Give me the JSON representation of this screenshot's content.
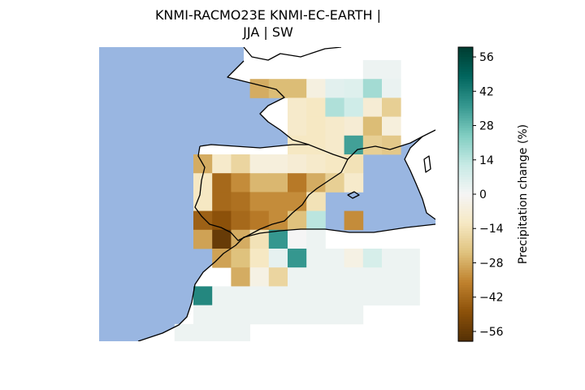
{
  "chart_data": {
    "type": "heatmap",
    "title_lines": [
      "KNMI-RACMO23E KNMI-EC-EARTH |",
      "JJA | SW"
    ],
    "colorbar": {
      "label": "Precipitation change (%)",
      "range": [
        -60,
        60
      ],
      "ticks": [
        -56,
        -42,
        -28,
        -14,
        0,
        14,
        28,
        42,
        56
      ],
      "tick_labels": [
        "−56",
        "−42",
        "−28",
        "−14",
        "0",
        "14",
        "28",
        "42",
        "56"
      ],
      "colormap": "BrBG"
    },
    "map_region": "Southwestern Europe / Iberian Peninsula / Western Mediterranean",
    "grid_columns": 17,
    "grid_rows": 15,
    "colors": {
      "ocean": "#99b6e1",
      "land_background": "#ffffff",
      "coastline": "#000000"
    },
    "cells": [
      {
        "row": 0,
        "col": 14,
        "value": 2
      },
      {
        "row": 0,
        "col": 15,
        "value": 2
      },
      {
        "row": 1,
        "col": 8,
        "value": -28
      },
      {
        "row": 1,
        "col": 9,
        "value": -25
      },
      {
        "row": 1,
        "col": 10,
        "value": -25
      },
      {
        "row": 1,
        "col": 11,
        "value": -5
      },
      {
        "row": 1,
        "col": 12,
        "value": 5
      },
      {
        "row": 1,
        "col": 13,
        "value": 6
      },
      {
        "row": 1,
        "col": 14,
        "value": 18
      },
      {
        "row": 1,
        "col": 15,
        "value": 3
      },
      {
        "row": 2,
        "col": 10,
        "value": -10
      },
      {
        "row": 2,
        "col": 11,
        "value": -12
      },
      {
        "row": 2,
        "col": 12,
        "value": 16
      },
      {
        "row": 2,
        "col": 13,
        "value": 10
      },
      {
        "row": 2,
        "col": 14,
        "value": -8
      },
      {
        "row": 2,
        "col": 15,
        "value": -20
      },
      {
        "row": 3,
        "col": 10,
        "value": -10
      },
      {
        "row": 3,
        "col": 11,
        "value": -12
      },
      {
        "row": 3,
        "col": 12,
        "value": -10
      },
      {
        "row": 3,
        "col": 13,
        "value": -8
      },
      {
        "row": 3,
        "col": 14,
        "value": -25
      },
      {
        "row": 3,
        "col": 15,
        "value": -6
      },
      {
        "row": 4,
        "col": 10,
        "value": -12
      },
      {
        "row": 4,
        "col": 11,
        "value": -12
      },
      {
        "row": 4,
        "col": 12,
        "value": -10
      },
      {
        "row": 4,
        "col": 13,
        "value": 34
      },
      {
        "row": 4,
        "col": 14,
        "value": -20
      },
      {
        "row": 4,
        "col": 15,
        "value": -22
      },
      {
        "row": 5,
        "col": 5,
        "value": -28
      },
      {
        "row": 5,
        "col": 6,
        "value": -10
      },
      {
        "row": 5,
        "col": 7,
        "value": -18
      },
      {
        "row": 5,
        "col": 8,
        "value": -6
      },
      {
        "row": 5,
        "col": 9,
        "value": -6
      },
      {
        "row": 5,
        "col": 10,
        "value": -8
      },
      {
        "row": 5,
        "col": 11,
        "value": -10
      },
      {
        "row": 5,
        "col": 12,
        "value": -12
      },
      {
        "row": 5,
        "col": 13,
        "value": -14
      },
      {
        "row": 6,
        "col": 5,
        "value": -12
      },
      {
        "row": 6,
        "col": 6,
        "value": -42
      },
      {
        "row": 6,
        "col": 7,
        "value": -34
      },
      {
        "row": 6,
        "col": 8,
        "value": -26
      },
      {
        "row": 6,
        "col": 9,
        "value": -26
      },
      {
        "row": 6,
        "col": 10,
        "value": -38
      },
      {
        "row": 6,
        "col": 11,
        "value": -28
      },
      {
        "row": 6,
        "col": 12,
        "value": -20
      },
      {
        "row": 6,
        "col": 13,
        "value": -10
      },
      {
        "row": 7,
        "col": 5,
        "value": -12
      },
      {
        "row": 7,
        "col": 6,
        "value": -42
      },
      {
        "row": 7,
        "col": 7,
        "value": -40
      },
      {
        "row": 7,
        "col": 8,
        "value": -34
      },
      {
        "row": 7,
        "col": 9,
        "value": -34
      },
      {
        "row": 7,
        "col": 10,
        "value": -34
      },
      {
        "row": 7,
        "col": 11,
        "value": -14
      },
      {
        "row": 8,
        "col": 5,
        "value": -44
      },
      {
        "row": 8,
        "col": 6,
        "value": -48
      },
      {
        "row": 8,
        "col": 7,
        "value": -42
      },
      {
        "row": 8,
        "col": 8,
        "value": -38
      },
      {
        "row": 8,
        "col": 9,
        "value": -34
      },
      {
        "row": 8,
        "col": 10,
        "value": -24
      },
      {
        "row": 8,
        "col": 11,
        "value": 14
      },
      {
        "row": 8,
        "col": 13,
        "value": -34
      },
      {
        "row": 9,
        "col": 5,
        "value": -30
      },
      {
        "row": 9,
        "col": 6,
        "value": -56
      },
      {
        "row": 9,
        "col": 7,
        "value": -28
      },
      {
        "row": 9,
        "col": 8,
        "value": -14
      },
      {
        "row": 9,
        "col": 9,
        "value": 36
      },
      {
        "row": 9,
        "col": 10,
        "value": 0
      },
      {
        "row": 9,
        "col": 11,
        "value": 2
      },
      {
        "row": 10,
        "col": 6,
        "value": -30
      },
      {
        "row": 10,
        "col": 7,
        "value": -24
      },
      {
        "row": 10,
        "col": 8,
        "value": -12
      },
      {
        "row": 10,
        "col": 9,
        "value": 4
      },
      {
        "row": 10,
        "col": 10,
        "value": 36
      },
      {
        "row": 10,
        "col": 11,
        "value": 2
      },
      {
        "row": 10,
        "col": 12,
        "value": 2
      },
      {
        "row": 10,
        "col": 13,
        "value": -4
      },
      {
        "row": 10,
        "col": 14,
        "value": 8
      },
      {
        "row": 10,
        "col": 15,
        "value": 2
      },
      {
        "row": 10,
        "col": 16,
        "value": 2
      },
      {
        "row": 11,
        "col": 7,
        "value": -28
      },
      {
        "row": 11,
        "col": 8,
        "value": -4
      },
      {
        "row": 11,
        "col": 9,
        "value": -18
      },
      {
        "row": 11,
        "col": 10,
        "value": 2
      },
      {
        "row": 11,
        "col": 11,
        "value": 2
      },
      {
        "row": 11,
        "col": 12,
        "value": 2
      },
      {
        "row": 11,
        "col": 13,
        "value": 2
      },
      {
        "row": 11,
        "col": 14,
        "value": 2
      },
      {
        "row": 11,
        "col": 15,
        "value": 2
      },
      {
        "row": 11,
        "col": 16,
        "value": 2
      },
      {
        "row": 12,
        "col": 5,
        "value": 40
      },
      {
        "row": 12,
        "col": 6,
        "value": 2
      },
      {
        "row": 12,
        "col": 7,
        "value": 2
      },
      {
        "row": 12,
        "col": 8,
        "value": 2
      },
      {
        "row": 12,
        "col": 9,
        "value": 2
      },
      {
        "row": 12,
        "col": 10,
        "value": 2
      },
      {
        "row": 12,
        "col": 11,
        "value": 2
      },
      {
        "row": 12,
        "col": 12,
        "value": 2
      },
      {
        "row": 12,
        "col": 13,
        "value": 2
      },
      {
        "row": 12,
        "col": 14,
        "value": 2
      },
      {
        "row": 12,
        "col": 15,
        "value": 2
      },
      {
        "row": 12,
        "col": 16,
        "value": 2
      },
      {
        "row": 13,
        "col": 5,
        "value": 2
      },
      {
        "row": 13,
        "col": 6,
        "value": 2
      },
      {
        "row": 13,
        "col": 7,
        "value": 2
      },
      {
        "row": 13,
        "col": 8,
        "value": 2
      },
      {
        "row": 13,
        "col": 9,
        "value": 2
      },
      {
        "row": 13,
        "col": 10,
        "value": 2
      },
      {
        "row": 13,
        "col": 11,
        "value": 2
      },
      {
        "row": 13,
        "col": 12,
        "value": 2
      },
      {
        "row": 13,
        "col": 13,
        "value": 2
      },
      {
        "row": 14,
        "col": 4,
        "value": 2
      },
      {
        "row": 14,
        "col": 5,
        "value": 2
      },
      {
        "row": 14,
        "col": 6,
        "value": 2
      },
      {
        "row": 14,
        "col": 7,
        "value": 2
      }
    ]
  }
}
